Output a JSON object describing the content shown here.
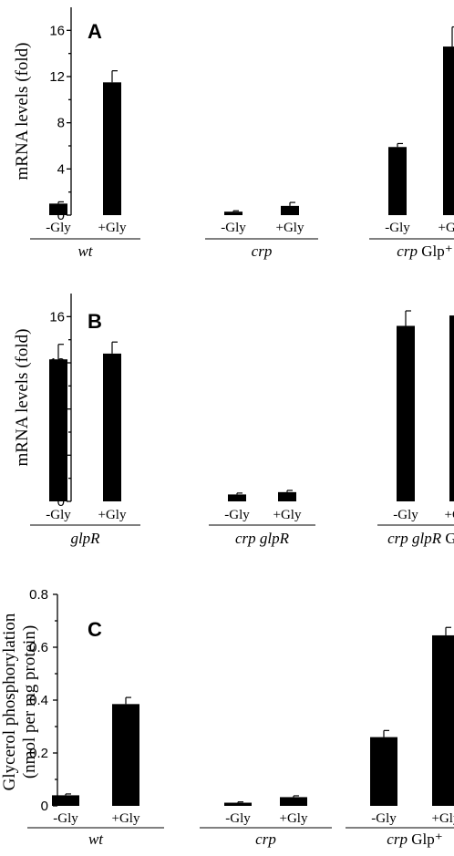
{
  "chart_data": [
    {
      "type": "bar",
      "panel": "A",
      "ylabel": "mRNA levels (fold)",
      "ylim": [
        0,
        18
      ],
      "yticks": [
        0,
        4,
        8,
        12,
        16
      ],
      "grid": false,
      "groups": [
        {
          "label": "wt",
          "italic": "wt",
          "suffix": "",
          "categories": [
            "-Gly",
            "+Gly"
          ],
          "values": [
            1.0,
            11.5
          ],
          "errors": [
            0.15,
            1.0
          ]
        },
        {
          "label": "crp",
          "italic": "crp",
          "suffix": "",
          "categories": [
            "-Gly",
            "+Gly"
          ],
          "values": [
            0.3,
            0.8
          ],
          "errors": [
            0.08,
            0.3
          ]
        },
        {
          "label": "crp Glp+",
          "italic": "crp",
          "suffix": "Glp⁺",
          "categories": [
            "-Gly",
            "+Gly"
          ],
          "values": [
            5.9,
            14.6
          ],
          "errors": [
            0.3,
            1.7
          ]
        }
      ]
    },
    {
      "type": "bar",
      "panel": "B",
      "ylabel": "mRNA levels (fold)",
      "ylim": [
        0,
        18
      ],
      "yticks": [
        0,
        4,
        8,
        12,
        16
      ],
      "grid": false,
      "groups": [
        {
          "label": "glpR",
          "italic": "glpR",
          "suffix": "",
          "categories": [
            "-Gly",
            "+Gly"
          ],
          "values": [
            12.3,
            12.8
          ],
          "errors": [
            1.3,
            1.0
          ]
        },
        {
          "label": "crp glpR",
          "italic": "crp glpR",
          "suffix": "",
          "categories": [
            "-Gly",
            "+Gly"
          ],
          "values": [
            0.6,
            0.8
          ],
          "errors": [
            0.12,
            0.15
          ]
        },
        {
          "label": "crp glpR Glp-",
          "italic": "crp glpR",
          "suffix": "Glp⁻",
          "categories": [
            "-Gly",
            "+Gly"
          ],
          "values": [
            15.2,
            16.1
          ],
          "errors": [
            1.3,
            1.6
          ]
        }
      ]
    },
    {
      "type": "bar",
      "panel": "C",
      "ylabel": "Glycerol phosphorylation",
      "ylabel2": "(nmol per mg protein)",
      "ylim": [
        0,
        0.8
      ],
      "yticks": [
        0,
        0.2,
        0.4,
        0.6,
        0.8
      ],
      "grid": false,
      "groups": [
        {
          "label": "wt",
          "italic": "wt",
          "suffix": "",
          "categories": [
            "-Gly",
            "+Gly"
          ],
          "values": [
            0.04,
            0.385
          ],
          "errors": [
            0.005,
            0.025
          ]
        },
        {
          "label": "crp",
          "italic": "crp",
          "suffix": "",
          "categories": [
            "-Gly",
            "+Gly"
          ],
          "values": [
            0.012,
            0.033
          ],
          "errors": [
            0.003,
            0.005
          ]
        },
        {
          "label": "crp Glp+",
          "italic": "crp",
          "suffix": "Glp⁺",
          "categories": [
            "-Gly",
            "+Gly"
          ],
          "values": [
            0.26,
            0.645
          ],
          "errors": [
            0.025,
            0.03
          ]
        }
      ]
    }
  ]
}
